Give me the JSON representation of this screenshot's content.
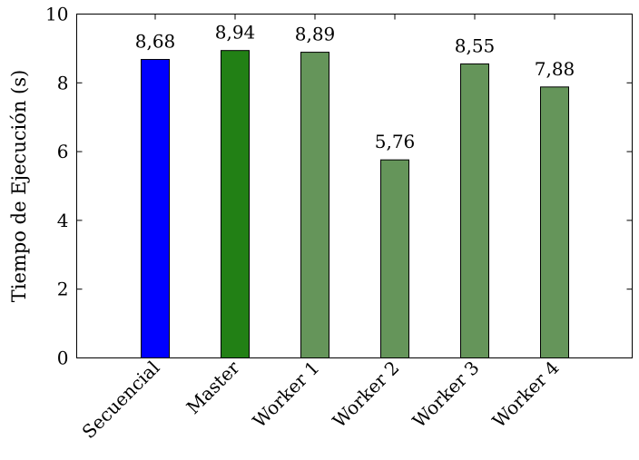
{
  "chart_data": {
    "type": "bar",
    "title": "",
    "xlabel": "",
    "ylabel": "Tiempo de Ejecución (s)",
    "ylim": [
      0,
      10
    ],
    "yticks": [
      0,
      2,
      4,
      6,
      8,
      10
    ],
    "categories": [
      "Secuencial",
      "Master",
      "Worker 1",
      "Worker 2",
      "Worker 3",
      "Worker 4"
    ],
    "values": [
      8.68,
      8.94,
      8.89,
      5.76,
      8.55,
      7.88
    ],
    "value_labels": [
      "8,68",
      "8,94",
      "8,89",
      "5,76",
      "8,55",
      "7,88"
    ],
    "colors": [
      "#0000ff",
      "#228015",
      "#65955a",
      "#65955a",
      "#65955a",
      "#65955a"
    ],
    "grid": false,
    "legend": "none"
  }
}
